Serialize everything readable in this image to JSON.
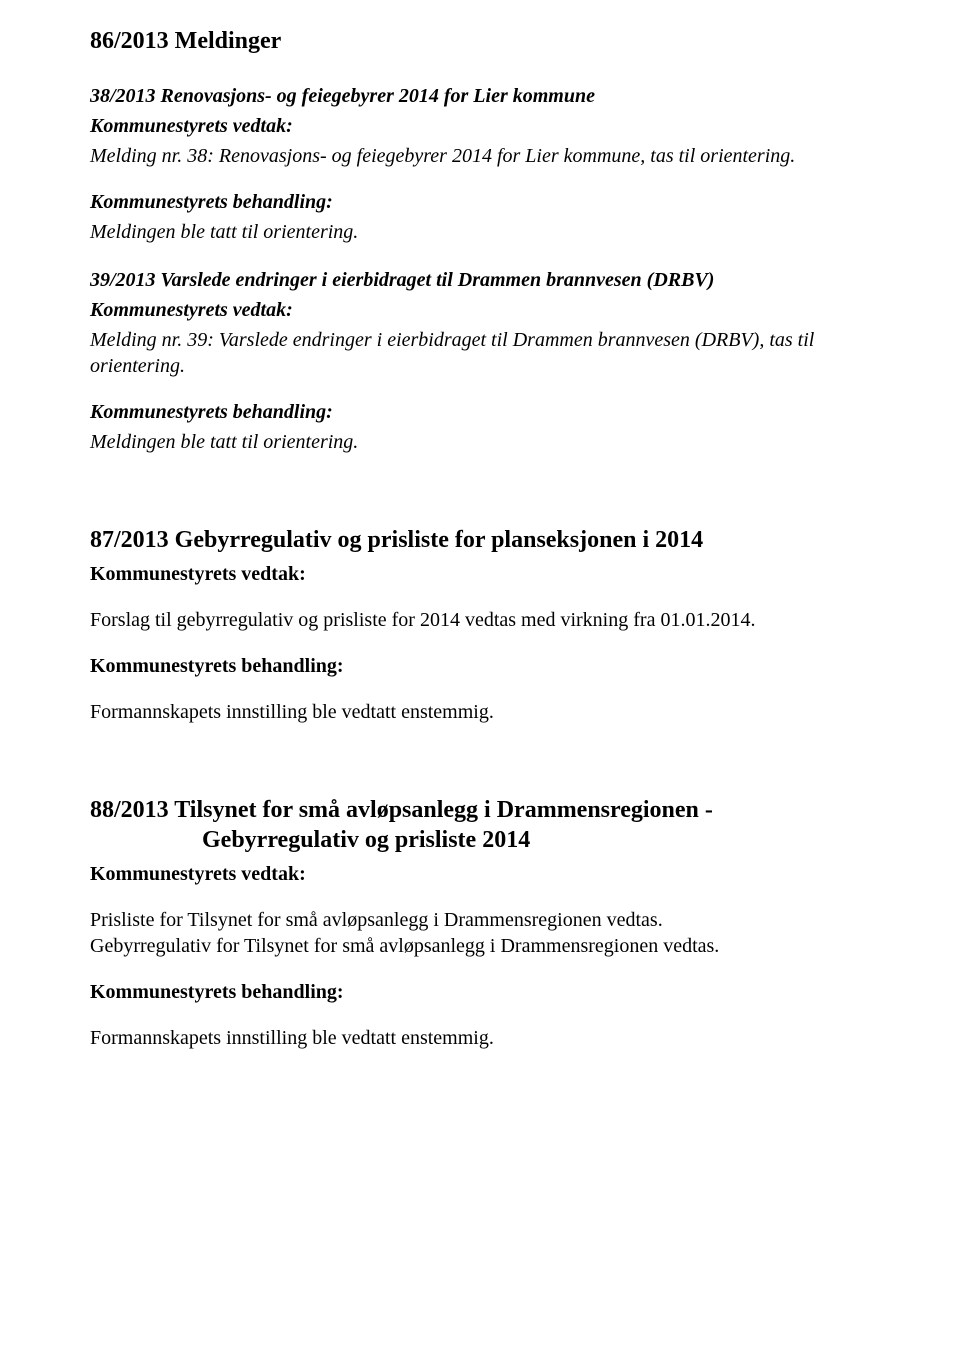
{
  "colors": {
    "text": "#000000",
    "background": "#ffffff"
  },
  "typography": {
    "body_family": "Times New Roman",
    "body_size_pt": 15,
    "heading_size_pt": 18
  },
  "sec86": {
    "title": "86/2013 Meldinger",
    "item38": {
      "heading": "38/2013 Renovasjons- og feiegebyrer 2014 for Lier kommune",
      "vedtak_label": "Kommunestyrets vedtak:",
      "melding": "Melding nr. 38: Renovasjons- og feiegebyrer 2014 for Lier kommune, tas til orientering.",
      "behandling_label": "Kommunestyrets behandling:",
      "behandling_body": "Meldingen ble tatt til orientering."
    },
    "item39": {
      "heading": "39/2013 Varslede endringer i eierbidraget til Drammen brannvesen (DRBV)",
      "vedtak_label": "Kommunestyrets vedtak:",
      "melding": "Melding nr. 39: Varslede endringer i eierbidraget til Drammen brannvesen (DRBV), tas til orientering.",
      "behandling_label": "Kommunestyrets behandling:",
      "behandling_body": "Meldingen ble tatt til orientering."
    }
  },
  "sec87": {
    "title": "87/2013 Gebyrregulativ og prisliste for planseksjonen i 2014",
    "vedtak_label": "Kommunestyrets vedtak:",
    "vedtak_body": "Forslag til gebyrregulativ og prisliste for 2014 vedtas med virkning fra 01.01.2014.",
    "behandling_label": "Kommunestyrets behandling:",
    "behandling_body": "Formannskapets innstilling ble vedtatt enstemmig."
  },
  "sec88": {
    "title_line1": "88/2013 Tilsynet for små avløpsanlegg i Drammensregionen -",
    "title_line2": "Gebyrregulativ og prisliste 2014",
    "vedtak_label": "Kommunestyrets vedtak:",
    "vedtak_body_1": "Prisliste for Tilsynet for små avløpsanlegg i Drammensregionen vedtas.",
    "vedtak_body_2": "Gebyrregulativ for Tilsynet for små avløpsanlegg i Drammensregionen vedtas.",
    "behandling_label": "Kommunestyrets behandling:",
    "behandling_body": "Formannskapets innstilling ble vedtatt enstemmig."
  }
}
